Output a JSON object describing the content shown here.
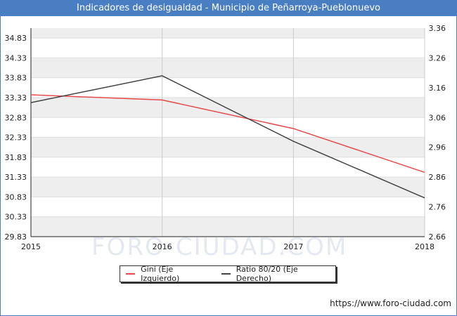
{
  "title": "Indicadores de desigualdad - Municipio de Peñarroya-Pueblonuevo",
  "watermark": "FORO-CIUDAD.COM",
  "footer": "https://www.foro-ciudad.com",
  "colors": {
    "header": "#4a7ec2",
    "gini": "#e84a4a",
    "ratio": "#444444",
    "band": "#eeeeee"
  },
  "chart_data": {
    "type": "line",
    "x": [
      2015,
      2016,
      2017,
      2018
    ],
    "x_tick_labels": [
      "2015",
      "2016",
      "2017",
      "2018"
    ],
    "left_ticks": [
      "34.83",
      "34.33",
      "33.83",
      "33.33",
      "32.83",
      "32.33",
      "31.83",
      "31.33",
      "30.83",
      "30.33",
      "29.83"
    ],
    "right_ticks": [
      "3.36",
      "3.26",
      "3.16",
      "3.06",
      "2.96",
      "2.86",
      "2.76",
      "2.66"
    ],
    "ylim_left": [
      29.83,
      35.08
    ],
    "ylim_right": [
      2.66,
      3.36
    ],
    "grid": true,
    "legend_position": "bottom",
    "series": [
      {
        "name": "Gini (Eje Izquierdo)",
        "axis": "left",
        "values": [
          33.4,
          33.27,
          32.55,
          31.45
        ]
      },
      {
        "name": "Ratio 80/20 (Eje Derecho)",
        "axis": "right",
        "values": [
          3.11,
          3.2,
          2.98,
          2.79
        ]
      }
    ]
  }
}
